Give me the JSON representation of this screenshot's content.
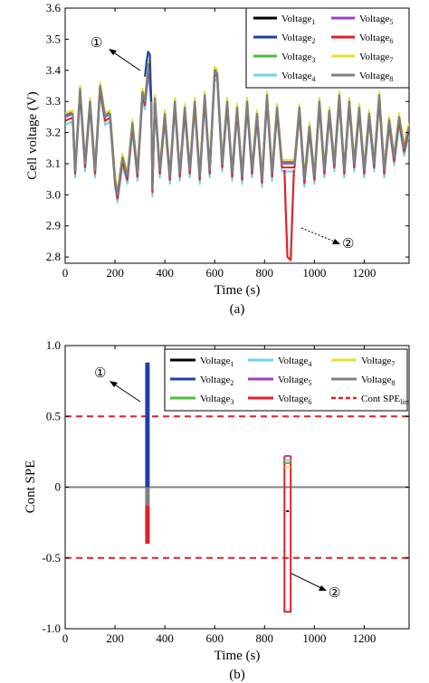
{
  "chart_data": [
    {
      "type": "line",
      "panel_label": "(a)",
      "xlabel": "Time (s)",
      "ylabel": "Cell voltage (V)",
      "xlim": [
        0,
        1380
      ],
      "ylim": [
        2.78,
        3.6
      ],
      "xticks": [
        "0",
        "200",
        "400",
        "600",
        "800",
        "1000",
        "1200"
      ],
      "yticks": [
        "2.8",
        "2.9",
        "3.0",
        "3.1",
        "3.2",
        "3.3",
        "3.4",
        "3.5",
        "3.6"
      ],
      "legend_position": "top-right",
      "series": [
        {
          "name": "Voltage",
          "sub": "1",
          "color": "#000000"
        },
        {
          "name": "Voltage",
          "sub": "2",
          "color": "#1f3fa8"
        },
        {
          "name": "Voltage",
          "sub": "3",
          "color": "#4cbf3a"
        },
        {
          "name": "Voltage",
          "sub": "4",
          "color": "#6fd3e8"
        },
        {
          "name": "Voltage",
          "sub": "5",
          "color": "#a040c0"
        },
        {
          "name": "Voltage",
          "sub": "6",
          "color": "#e0202a"
        },
        {
          "name": "Voltage",
          "sub": "7",
          "color": "#e8e030"
        },
        {
          "name": "Voltage",
          "sub": "8",
          "color": "#808080"
        }
      ],
      "base_profile": {
        "x": [
          0,
          30,
          40,
          60,
          80,
          100,
          120,
          140,
          160,
          180,
          200,
          210,
          230,
          250,
          270,
          290,
          310,
          320,
          335,
          345,
          350,
          360,
          380,
          400,
          420,
          440,
          460,
          480,
          500,
          520,
          540,
          560,
          580,
          600,
          610,
          630,
          650,
          670,
          690,
          710,
          730,
          750,
          770,
          790,
          810,
          830,
          850,
          870,
          880,
          920,
          940,
          960,
          980,
          1000,
          1020,
          1040,
          1060,
          1080,
          1100,
          1120,
          1140,
          1160,
          1180,
          1200,
          1220,
          1240,
          1260,
          1280,
          1300,
          1320,
          1340,
          1360,
          1380
        ],
        "y": [
          3.25,
          3.26,
          3.08,
          3.34,
          3.1,
          3.3,
          3.08,
          3.35,
          3.25,
          3.26,
          3.05,
          3.0,
          3.12,
          3.06,
          3.23,
          3.07,
          3.33,
          3.3,
          3.42,
          3.32,
          3.02,
          3.31,
          3.08,
          3.26,
          3.06,
          3.3,
          3.07,
          3.28,
          3.08,
          3.3,
          3.06,
          3.32,
          3.08,
          3.4,
          3.39,
          3.1,
          3.3,
          3.07,
          3.28,
          3.06,
          3.3,
          3.08,
          3.26,
          3.05,
          3.32,
          3.07,
          3.28,
          3.1,
          3.1,
          3.1,
          3.28,
          3.05,
          3.22,
          3.06,
          3.3,
          3.08,
          3.27,
          3.1,
          3.32,
          3.08,
          3.3,
          3.1,
          3.28,
          3.08,
          3.26,
          3.1,
          3.32,
          3.08,
          3.24,
          3.12,
          3.25,
          3.15,
          3.22
        ]
      },
      "series_offsets": [
        0.0,
        0.0,
        0.006,
        -0.025,
        0.004,
        -0.012,
        0.012,
        0.0
      ],
      "spikes": [
        {
          "series": "2",
          "x": [
            320,
            327,
            333,
            340,
            345
          ],
          "y": [
            3.38,
            3.43,
            3.46,
            3.45,
            3.3
          ]
        },
        {
          "series": "6",
          "x": [
            880,
            885,
            892,
            905,
            912,
            918
          ],
          "y": [
            3.08,
            2.95,
            2.8,
            2.79,
            2.95,
            3.08
          ]
        }
      ],
      "annotations": [
        "①",
        "②"
      ]
    },
    {
      "type": "line",
      "panel_label": "(b)",
      "xlabel": "Time (s)",
      "ylabel": "Cont SPE",
      "xlim": [
        0,
        1380
      ],
      "ylim": [
        -1.0,
        1.0
      ],
      "xticks": [
        "0",
        "200",
        "400",
        "600",
        "800",
        "1000",
        "1200"
      ],
      "yticks": [
        "-1.0",
        "-0.5",
        "0",
        "0.5",
        "1.0"
      ],
      "legend_position": "top-right",
      "series": [
        {
          "name": "Voltage",
          "sub": "1",
          "color": "#000000"
        },
        {
          "name": "Voltage",
          "sub": "2",
          "color": "#1f3fa8"
        },
        {
          "name": "Voltage",
          "sub": "3",
          "color": "#4cbf3a"
        },
        {
          "name": "Voltage",
          "sub": "4",
          "color": "#6fd3e8"
        },
        {
          "name": "Voltage",
          "sub": "5",
          "color": "#a040c0"
        },
        {
          "name": "Voltage",
          "sub": "6",
          "color": "#e0202a"
        },
        {
          "name": "Voltage",
          "sub": "7",
          "color": "#e8e030"
        },
        {
          "name": "Voltage",
          "sub": "8",
          "color": "#808080"
        },
        {
          "name": "Cont SPE",
          "sub": "lim",
          "color": "#e0202a",
          "dashed": true
        }
      ],
      "limit": [
        0.5,
        -0.5
      ],
      "bars": [
        {
          "series": "2",
          "x": [
            330,
            330
          ],
          "y": [
            0.0,
            0.88
          ]
        },
        {
          "series": "8",
          "x": [
            330,
            330
          ],
          "y": [
            0.0,
            -0.13
          ]
        },
        {
          "series": "6",
          "x": [
            330,
            330
          ],
          "y": [
            -0.13,
            -0.4
          ]
        },
        {
          "series": "6",
          "x": [
            880,
            880,
            905,
            905
          ],
          "y": [
            0.22,
            -0.88,
            -0.88,
            0.22
          ]
        },
        {
          "series": "5",
          "x": [
            880,
            905
          ],
          "y": [
            0.22,
            0.22
          ]
        },
        {
          "series": "4",
          "x": [
            880,
            905
          ],
          "y": [
            0.19,
            0.19
          ]
        },
        {
          "series": "3",
          "x": [
            880,
            905
          ],
          "y": [
            0.17,
            0.17
          ]
        },
        {
          "series": "7",
          "x": [
            880,
            905
          ],
          "y": [
            0.14,
            0.14
          ]
        },
        {
          "series": "1",
          "x": [
            887,
            898
          ],
          "y": [
            -0.17,
            -0.17
          ]
        }
      ],
      "annotations": [
        "①",
        "②"
      ]
    }
  ]
}
